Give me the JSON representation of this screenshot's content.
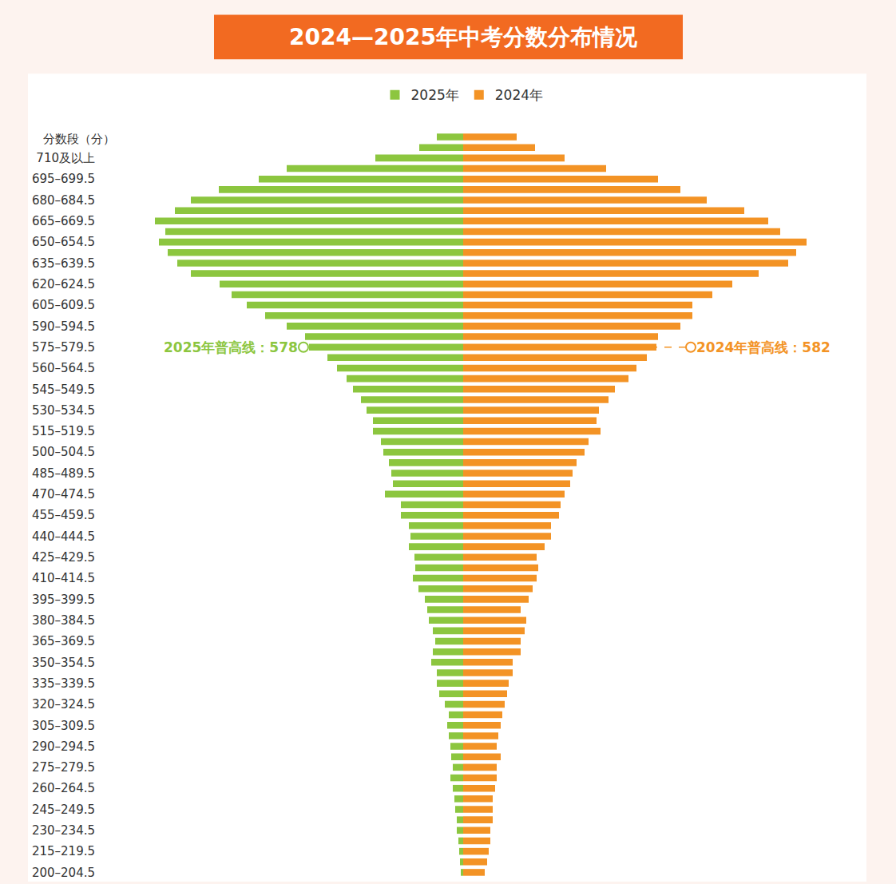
{
  "chart_data": {
    "type": "bar",
    "title": "2024—2025年中考分数分布情况",
    "ylabel": "分数段（分）",
    "orientation": "horizontal",
    "tick_labels": "y",
    "legend": "top",
    "grid": false,
    "xlim": [
      0,
      460
    ],
    "categories": [
      null,
      null,
      "710及以上",
      null,
      "695–699.5",
      null,
      "680–684.5",
      null,
      "665–669.5",
      null,
      "650–654.5",
      null,
      "635–639.5",
      null,
      "620–624.5",
      null,
      "605–609.5",
      null,
      "590–594.5",
      null,
      "575–579.5",
      null,
      "560–564.5",
      null,
      "545–549.5",
      null,
      "530–534.5",
      null,
      "515–519.5",
      null,
      "500–504.5",
      null,
      "485–489.5",
      null,
      "470–474.5",
      null,
      "455–459.5",
      null,
      "440–444.5",
      null,
      "425–429.5",
      null,
      "410–414.5",
      null,
      "395–399.5",
      null,
      "380–384.5",
      null,
      "365–369.5",
      null,
      "350–354.5",
      null,
      "335–339.5",
      null,
      "320–324.5",
      null,
      "305–309.5",
      null,
      "290–294.5",
      null,
      "275–279.5",
      null,
      "260–264.5",
      null,
      "245–249.5",
      null,
      "230–234.5",
      null,
      "215–219.5",
      null,
      "200–204.5"
    ],
    "series": [
      {
        "name": "2025年",
        "color": "#8cc63f",
        "values": [
          33,
          55,
          110,
          221,
          256,
          306,
          341,
          361,
          386,
          373,
          381,
          370,
          358,
          341,
          305,
          290,
          271,
          248,
          221,
          198,
          193,
          170,
          158,
          146,
          138,
          128,
          121,
          113,
          113,
          103,
          100,
          93,
          90,
          88,
          98,
          78,
          78,
          68,
          66,
          68,
          61,
          60,
          63,
          56,
          48,
          45,
          43,
          38,
          35,
          38,
          40,
          33,
          33,
          30,
          23,
          18,
          20,
          18,
          16,
          15,
          13,
          16,
          13,
          11,
          10,
          8,
          8,
          6,
          5,
          4,
          3
        ]
      },
      {
        "name": "2024年",
        "color": "#f39325",
        "values": [
          67,
          90,
          127,
          179,
          244,
          272,
          305,
          352,
          382,
          397,
          430,
          417,
          407,
          370,
          337,
          312,
          287,
          287,
          272,
          244,
          242,
          230,
          217,
          207,
          190,
          182,
          170,
          167,
          172,
          157,
          152,
          142,
          137,
          134,
          127,
          122,
          120,
          110,
          110,
          102,
          92,
          94,
          92,
          87,
          82,
          72,
          79,
          77,
          72,
          72,
          62,
          62,
          57,
          55,
          52,
          49,
          47,
          44,
          42,
          47,
          42,
          42,
          40,
          37,
          37,
          37,
          34,
          34,
          32,
          30,
          27
        ]
      }
    ],
    "annotations": [
      {
        "text": "2025年普高线：578",
        "at": "575–579.5",
        "series": "2025年"
      },
      {
        "text": "2024年普高线：582",
        "at": "575–579.5",
        "series": "2024年"
      }
    ]
  }
}
